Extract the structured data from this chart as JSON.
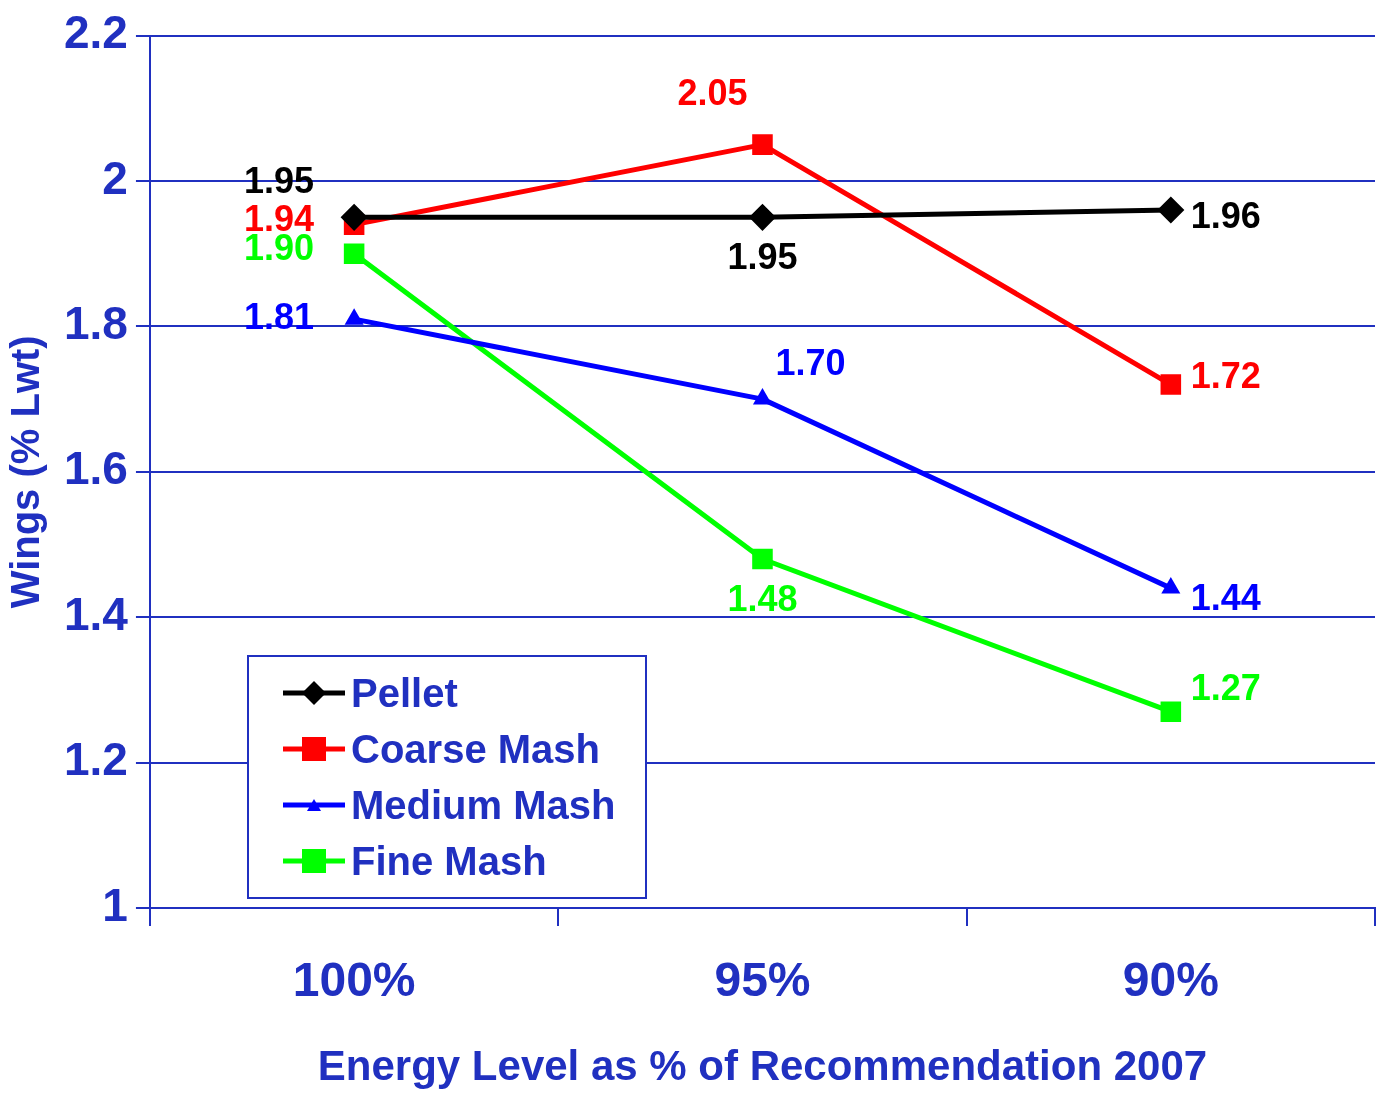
{
  "chart_data": {
    "type": "line",
    "xlabel": "Energy Level as % of Recommendation 2007",
    "ylabel": "Wings (% Lwt)",
    "categories": [
      "100%",
      "95%",
      "90%"
    ],
    "series": [
      {
        "name": "Pellet",
        "color": "#000000",
        "marker": "diamond",
        "values": [
          1.95,
          1.95,
          1.96
        ],
        "value_labels": [
          "1.95",
          "1.95",
          "1.96"
        ]
      },
      {
        "name": "Coarse Mash",
        "color": "#ff0000",
        "marker": "square",
        "values": [
          1.94,
          2.05,
          1.72
        ],
        "value_labels": [
          "1.94",
          "2.05",
          "1.72"
        ]
      },
      {
        "name": "Medium Mash",
        "color": "#0000ff",
        "marker": "triangle",
        "values": [
          1.81,
          1.7,
          1.44
        ],
        "value_labels": [
          "1.81",
          "1.70",
          "1.44"
        ]
      },
      {
        "name": "Fine Mash",
        "color": "#00ff00",
        "marker": "square",
        "values": [
          1.9,
          1.48,
          1.27
        ],
        "value_labels": [
          "1.90",
          "1.48",
          "1.27"
        ]
      }
    ],
    "ylim": [
      1,
      2.2
    ],
    "yticks": [
      1,
      1.2,
      1.4,
      1.6,
      1.8,
      2,
      2.2
    ],
    "grid": "y",
    "legend": "bottom left"
  }
}
